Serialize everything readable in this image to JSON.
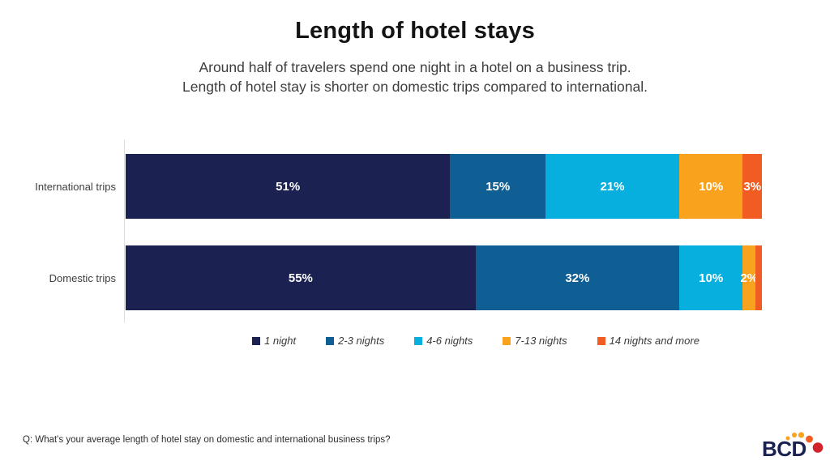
{
  "header": {
    "title": "Length of hotel stays",
    "subtitle_line1": "Around half of travelers spend one night in a hotel on a business trip.",
    "subtitle_line2": "Length of hotel stay is shorter on domestic trips compared to international."
  },
  "chart_data": {
    "type": "bar",
    "variant": "horizontal-stacked",
    "stacked": true,
    "unit": "%",
    "xlim": [
      0,
      100
    ],
    "grid": false,
    "legend_position": "bottom",
    "categories": [
      "International trips",
      "Domestic trips"
    ],
    "series": [
      {
        "name": "1 night",
        "color": "#1B2150",
        "values": [
          51,
          55
        ]
      },
      {
        "name": "2-3 nights",
        "color": "#0F5E94",
        "values": [
          15,
          32
        ]
      },
      {
        "name": "4-6 nights",
        "color": "#06AFDE",
        "values": [
          21,
          10
        ]
      },
      {
        "name": "7-13 nights",
        "color": "#F9A21D",
        "values": [
          10,
          2
        ]
      },
      {
        "name": "14 nights and more",
        "color": "#F15C22",
        "values": [
          3,
          1
        ]
      }
    ],
    "data_labels": [
      [
        "51%",
        "15%",
        "21%",
        "10%",
        "3%"
      ],
      [
        "55%",
        "32%",
        "10%",
        "2%",
        ""
      ]
    ]
  },
  "footnote": "Q: What's your average length of hotel stay on domestic and international business trips?",
  "logo": {
    "text": "BCD",
    "navy": "#1B2150",
    "dot_orange": "#F9A21D",
    "dot_orange_red": "#F15C22",
    "dot_red": "#D2232A"
  }
}
